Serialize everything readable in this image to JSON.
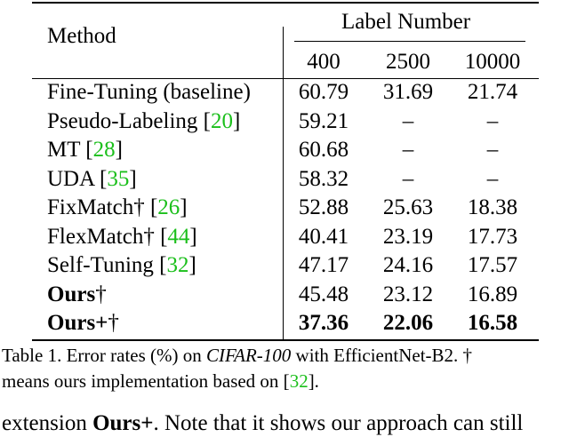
{
  "table": {
    "header": {
      "method": "Method",
      "group": "Label Number",
      "columns": [
        "400",
        "2500",
        "10000"
      ]
    },
    "rows": [
      {
        "method": "Fine-Tuning (baseline)",
        "cite": "",
        "suffix": "",
        "bold": false,
        "values": [
          "60.79",
          "31.69",
          "21.74"
        ],
        "bold_values": [
          false,
          false,
          false
        ]
      },
      {
        "method": "Pseudo-Labeling [",
        "cite": "20",
        "suffix": "]",
        "bold": false,
        "values": [
          "59.21",
          "–",
          "–"
        ],
        "bold_values": [
          false,
          false,
          false
        ]
      },
      {
        "method": "MT [",
        "cite": "28",
        "suffix": "]",
        "bold": false,
        "values": [
          "60.68",
          "–",
          "–"
        ],
        "bold_values": [
          false,
          false,
          false
        ]
      },
      {
        "method": "UDA [",
        "cite": "35",
        "suffix": "]",
        "bold": false,
        "values": [
          "58.32",
          "–",
          "–"
        ],
        "bold_values": [
          false,
          false,
          false
        ]
      },
      {
        "method": "FixMatch† [",
        "cite": "26",
        "suffix": "]",
        "bold": false,
        "values": [
          "52.88",
          "25.63",
          "18.38"
        ],
        "bold_values": [
          false,
          false,
          false
        ]
      },
      {
        "method": "FlexMatch† [",
        "cite": "44",
        "suffix": "]",
        "bold": false,
        "values": [
          "40.41",
          "23.19",
          "17.73"
        ],
        "bold_values": [
          false,
          false,
          false
        ]
      },
      {
        "method": "Self-Tuning [",
        "cite": "32",
        "suffix": "]",
        "bold": false,
        "values": [
          "47.17",
          "24.16",
          "17.57"
        ],
        "bold_values": [
          false,
          false,
          false
        ]
      },
      {
        "method": "Ours",
        "cite": "",
        "suffix": "†",
        "bold": true,
        "values": [
          "45.48",
          "23.12",
          "16.89"
        ],
        "bold_values": [
          false,
          false,
          false
        ]
      },
      {
        "method": "Ours+",
        "cite": "",
        "suffix": "†",
        "bold": true,
        "values": [
          "37.36",
          "22.06",
          "16.58"
        ],
        "bold_values": [
          true,
          true,
          true
        ]
      }
    ]
  },
  "caption": {
    "line1_prefix": "Table 1. Error rates (%) on ",
    "line1_dataset": "CIFAR-100",
    "line1_suffix": " with EfficientNet-B2.   †",
    "line2_prefix": "means ours implementation based on [",
    "line2_cite": "32",
    "line2_suffix": "]."
  },
  "body_text": {
    "prefix": "extension ",
    "bold": "Ours+",
    "rest": ". Note that it shows our approach can still"
  }
}
